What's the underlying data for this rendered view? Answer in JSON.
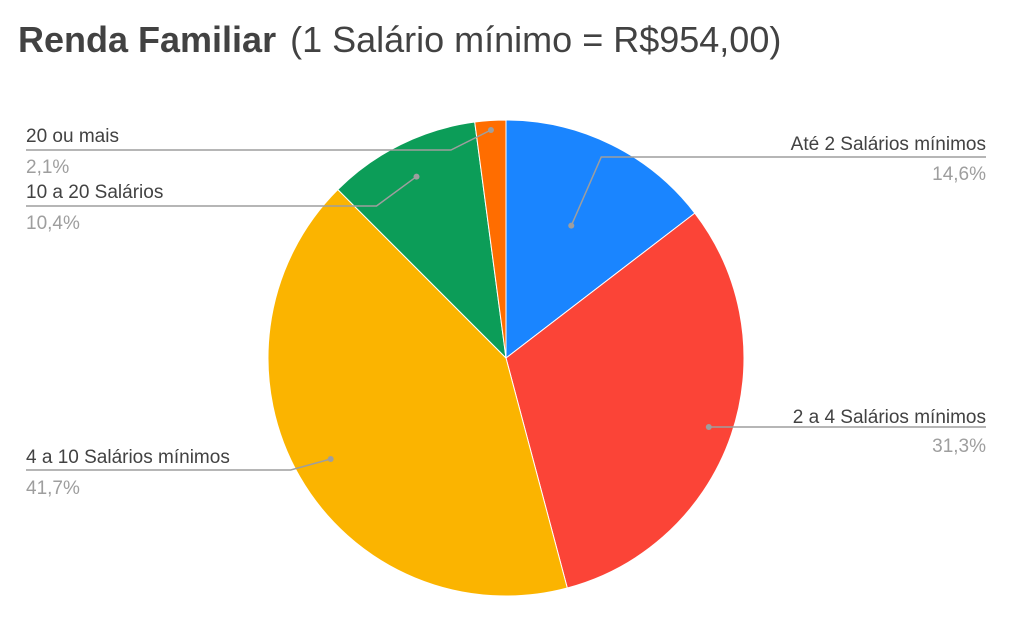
{
  "chart_data": {
    "type": "pie",
    "title": "Renda Familiar",
    "subtitle": "(1 Salário mínimo = R$954,00)",
    "legend": "none",
    "slices": [
      {
        "label": "Até 2 Salários mínimos",
        "value": 14.6,
        "value_label": "14,6%",
        "color": "#1a85ff"
      },
      {
        "label": "2 a 4 Salários mínimos",
        "value": 31.3,
        "value_label": "31,3%",
        "color": "#fb4437"
      },
      {
        "label": "4 a 10 Salários mínimos",
        "value": 41.7,
        "value_label": "41,7%",
        "color": "#fbb400"
      },
      {
        "label": "10 a 20 Salários",
        "value": 10.4,
        "value_label": "10,4%",
        "color": "#0c9d58"
      },
      {
        "label": "20 ou mais",
        "value": 2.1,
        "value_label": "2,1%",
        "color": "#ff6d00"
      }
    ]
  }
}
